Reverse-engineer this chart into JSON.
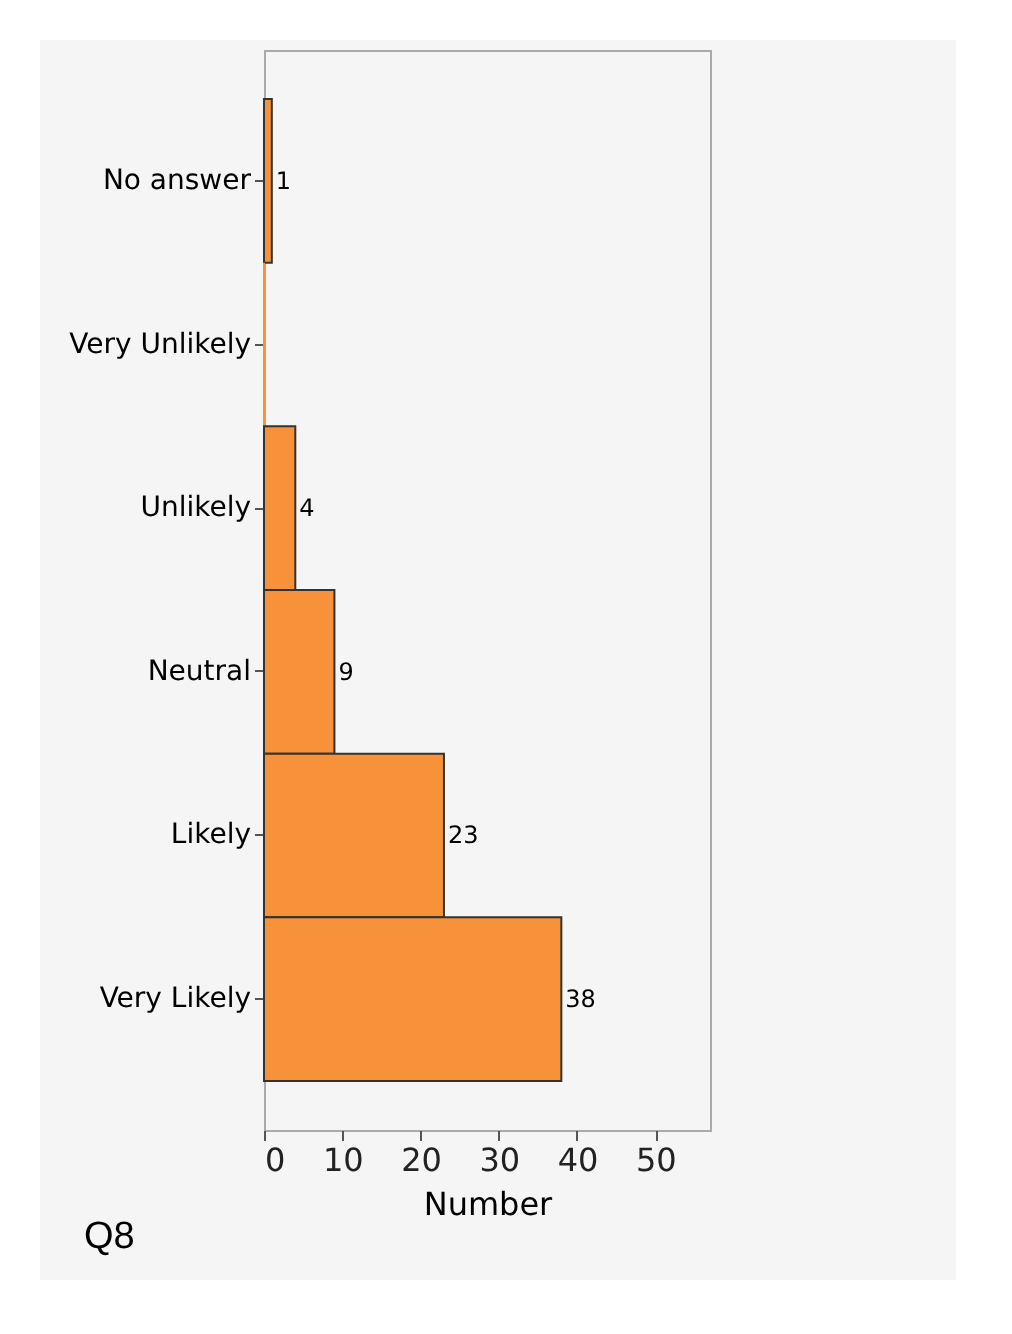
{
  "chart_data": {
    "type": "bar",
    "orientation": "horizontal",
    "xlabel": "Number",
    "categories": [
      "No answer",
      "Very Unlikely",
      "Unlikely",
      "Neutral",
      "Likely",
      "Very Likely"
    ],
    "values": [
      1,
      0,
      4,
      9,
      23,
      38
    ],
    "color": "#f7923a",
    "xlim": [
      0,
      57
    ],
    "xticks": [
      0,
      10,
      20,
      30,
      40,
      50
    ],
    "grid": false,
    "value_labels": [
      "1",
      null,
      "4",
      "9",
      "23",
      "38"
    ],
    "annotations": [
      "Q8"
    ]
  }
}
